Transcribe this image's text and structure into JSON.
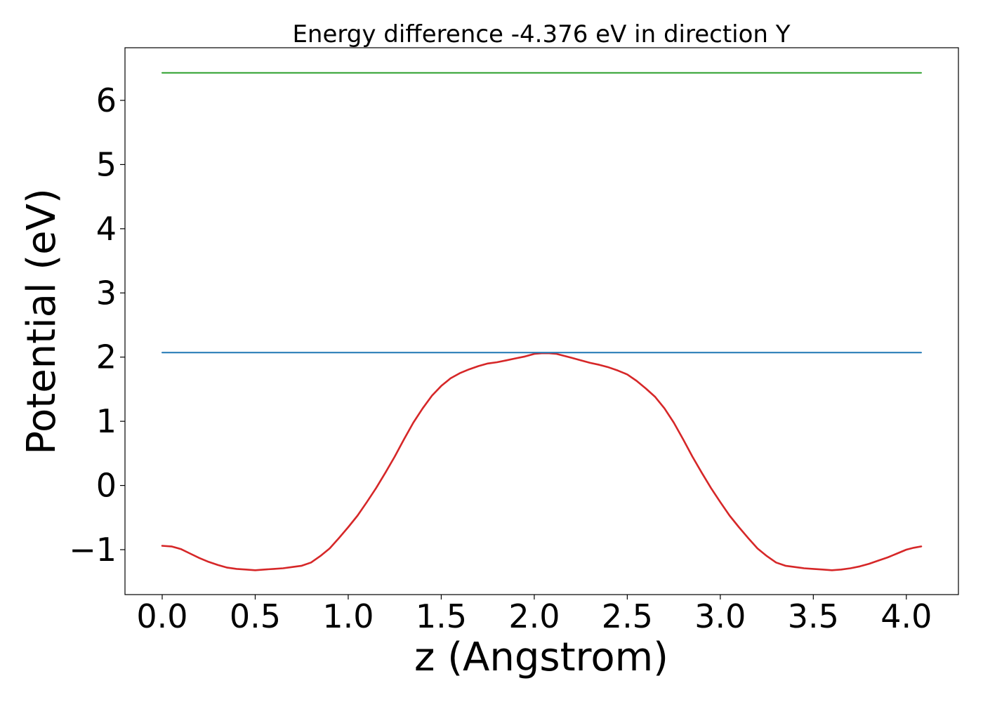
{
  "chart_data": {
    "type": "line",
    "title": "Energy difference -4.376 eV in direction Y",
    "xlabel": "z (Angstrom)",
    "ylabel": "Potential (eV)",
    "xlim": [
      -0.2,
      4.28
    ],
    "ylim": [
      -1.7,
      6.82
    ],
    "x_ticks": [
      0.0,
      0.5,
      1.0,
      1.5,
      2.0,
      2.5,
      3.0,
      3.5,
      4.0
    ],
    "x_tick_labels": [
      "0.0",
      "0.5",
      "1.0",
      "1.5",
      "2.0",
      "2.5",
      "3.0",
      "3.5",
      "4.0"
    ],
    "y_ticks": [
      -1,
      0,
      1,
      2,
      3,
      4,
      5,
      6
    ],
    "y_tick_labels": [
      "−1",
      "0",
      "1",
      "2",
      "3",
      "4",
      "5",
      "6"
    ],
    "grid": false,
    "legend": false,
    "series": [
      {
        "color": "#d62728",
        "x": [
          0.0,
          0.05,
          0.1,
          0.15,
          0.2,
          0.25,
          0.3,
          0.35,
          0.4,
          0.45,
          0.5,
          0.55,
          0.6,
          0.65,
          0.7,
          0.75,
          0.8,
          0.85,
          0.9,
          0.95,
          1.0,
          1.05,
          1.1,
          1.15,
          1.2,
          1.25,
          1.3,
          1.35,
          1.4,
          1.45,
          1.5,
          1.55,
          1.6,
          1.65,
          1.7,
          1.75,
          1.8,
          1.85,
          1.9,
          1.95,
          2.0,
          2.04,
          2.08,
          2.12,
          2.16,
          2.2,
          2.25,
          2.3,
          2.35,
          2.4,
          2.45,
          2.5,
          2.55,
          2.6,
          2.65,
          2.7,
          2.75,
          2.8,
          2.85,
          2.9,
          2.95,
          3.0,
          3.05,
          3.1,
          3.15,
          3.2,
          3.25,
          3.3,
          3.35,
          3.4,
          3.45,
          3.5,
          3.55,
          3.6,
          3.65,
          3.7,
          3.75,
          3.8,
          3.85,
          3.9,
          3.95,
          4.0,
          4.04,
          4.08
        ],
        "y": [
          -0.94,
          -0.95,
          -0.99,
          -1.06,
          -1.13,
          -1.19,
          -1.24,
          -1.28,
          -1.3,
          -1.31,
          -1.32,
          -1.31,
          -1.3,
          -1.29,
          -1.27,
          -1.25,
          -1.2,
          -1.1,
          -0.98,
          -0.82,
          -0.65,
          -0.47,
          -0.26,
          -0.04,
          0.2,
          0.45,
          0.72,
          0.98,
          1.2,
          1.4,
          1.55,
          1.67,
          1.75,
          1.81,
          1.86,
          1.9,
          1.92,
          1.95,
          1.98,
          2.01,
          2.05,
          2.06,
          2.06,
          2.05,
          2.02,
          1.99,
          1.95,
          1.91,
          1.88,
          1.84,
          1.79,
          1.73,
          1.63,
          1.51,
          1.38,
          1.2,
          0.98,
          0.72,
          0.45,
          0.2,
          -0.04,
          -0.26,
          -0.47,
          -0.65,
          -0.82,
          -0.98,
          -1.1,
          -1.2,
          -1.25,
          -1.27,
          -1.29,
          -1.3,
          -1.31,
          -1.32,
          -1.31,
          -1.29,
          -1.26,
          -1.22,
          -1.17,
          -1.12,
          -1.06,
          -1.0,
          -0.97,
          -0.95
        ]
      },
      {
        "color": "#1f77b4",
        "x": [
          0.0,
          4.08
        ],
        "y": [
          2.07,
          2.07
        ]
      },
      {
        "color": "#2ca02c",
        "x": [
          0.0,
          4.08
        ],
        "y": [
          6.43,
          6.43
        ]
      }
    ]
  }
}
